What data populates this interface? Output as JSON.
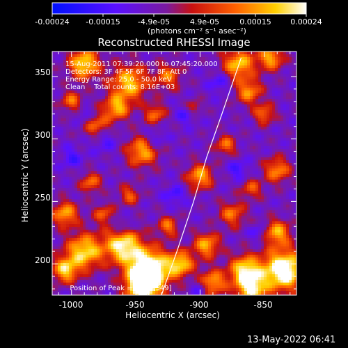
{
  "colorbar": {
    "tick_labels": [
      "-0.00024",
      "-0.00015",
      "-4.9e-05",
      "4.9e-05",
      "0.00015",
      "0.00024"
    ],
    "units_label": "(photons cm⁻² s⁻¹ asec⁻²)"
  },
  "plot": {
    "title": "Reconstructed RHESSI Image",
    "xlabel": "Heliocentric X (arcsec)",
    "ylabel": "Heliocentric Y (arcsec)",
    "x_ticks": [
      "-1000",
      "-950",
      "-900",
      "-850"
    ],
    "y_ticks": [
      "350",
      "300",
      "250",
      "200"
    ],
    "info_lines": [
      "15-Aug-2011 07:39:20.000 to 07:45:20.000",
      "Detectors: 3F 4F 5F 6F 7F 8F, Att 0",
      "Energy Range: 25.0 - 50.0 keV",
      "Clean    Total counts: 8.16E+03"
    ],
    "peak_label": "Position of Peak = [-",
    "peak_value": "873,349]"
  },
  "footer": {
    "date_stamp": "13-May-2022 06:41"
  },
  "chart_data": {
    "type": "heatmap",
    "title": "Reconstructed RHESSI Image",
    "xlabel": "Heliocentric X (arcsec)",
    "ylabel": "Heliocentric Y (arcsec)",
    "xlim": [
      -1015,
      -825
    ],
    "ylim": [
      175,
      370
    ],
    "color_range": [
      -0.00024,
      0.00024
    ],
    "colormap": "blue-purple-red-yellow-white",
    "limb_points": [
      [
        -930,
        175
      ],
      [
        -918,
        210
      ],
      [
        -905,
        250
      ],
      [
        -895,
        285
      ],
      [
        -883,
        320
      ],
      [
        -868,
        365
      ]
    ],
    "peak": [
      -873,
      349
    ],
    "colors": {
      "background": "#000000",
      "text": "#ffffff",
      "limb": "#ffffff"
    }
  }
}
